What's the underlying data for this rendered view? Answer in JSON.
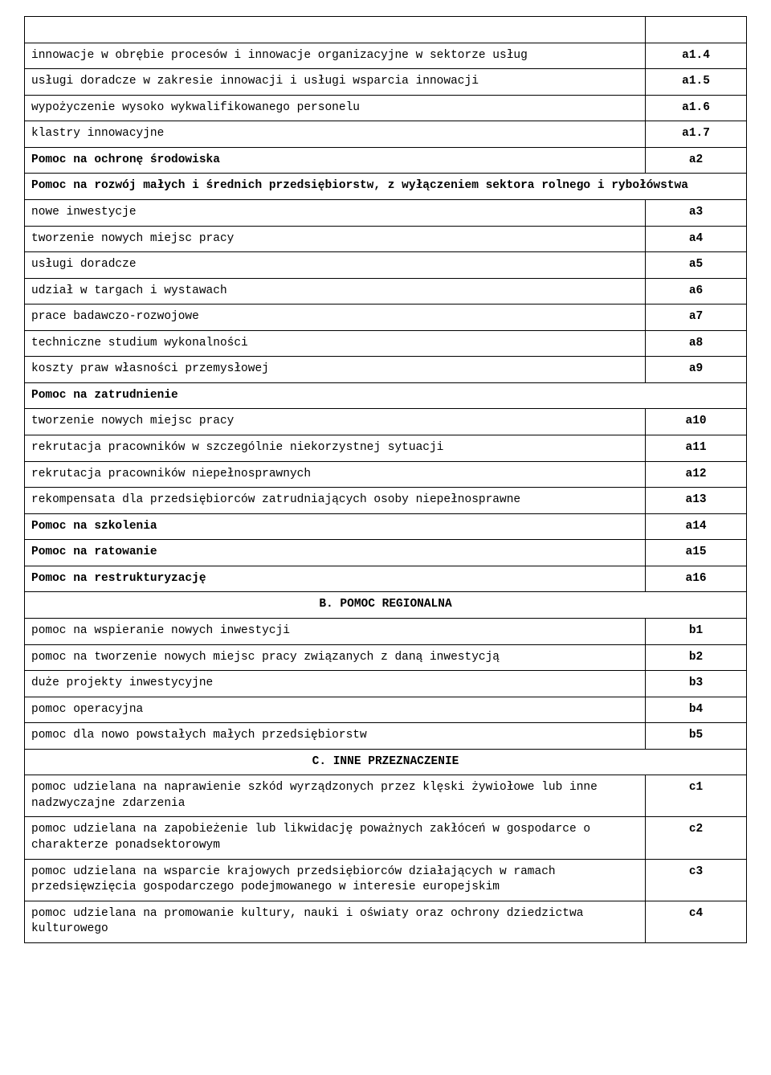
{
  "rows": [
    {
      "type": "empty"
    },
    {
      "type": "item",
      "desc": "innowacje w obrębie procesów i innowacje organizacyjne w sektorze usług",
      "code": "a1.4"
    },
    {
      "type": "item",
      "desc": "usługi doradcze w zakresie innowacji i usługi wsparcia innowacji",
      "code": "a1.5"
    },
    {
      "type": "item",
      "desc": "wypożyczenie wysoko wykwalifikowanego personelu",
      "code": "a1.6"
    },
    {
      "type": "item",
      "desc": "klastry innowacyjne",
      "code": "a1.7"
    },
    {
      "type": "item",
      "desc": "Pomoc na ochronę środowiska",
      "code": "a2",
      "bold": true
    },
    {
      "type": "header",
      "text": "Pomoc na rozwój małych i średnich przedsiębiorstw, z wyłączeniem sektora rolnego i rybołówstwa"
    },
    {
      "type": "item",
      "desc": "nowe inwestycje",
      "code": "a3"
    },
    {
      "type": "item",
      "desc": "tworzenie nowych miejsc pracy",
      "code": "a4"
    },
    {
      "type": "item",
      "desc": "usługi doradcze",
      "code": "a5"
    },
    {
      "type": "item",
      "desc": "udział w targach i wystawach",
      "code": "a6"
    },
    {
      "type": "item",
      "desc": "prace badawczo-rozwojowe",
      "code": "a7"
    },
    {
      "type": "item",
      "desc": "techniczne studium wykonalności",
      "code": "a8"
    },
    {
      "type": "item",
      "desc": "koszty praw własności przemysłowej",
      "code": "a9"
    },
    {
      "type": "header",
      "text": "Pomoc na zatrudnienie"
    },
    {
      "type": "item",
      "desc": "tworzenie nowych miejsc pracy",
      "code": "a10"
    },
    {
      "type": "item",
      "desc": "rekrutacja pracowników w szczególnie niekorzystnej sytuacji",
      "code": "a11"
    },
    {
      "type": "item",
      "desc": "rekrutacja pracowników niepełnosprawnych",
      "code": "a12"
    },
    {
      "type": "item",
      "desc": "rekompensata dla przedsiębiorców zatrudniających osoby niepełnosprawne",
      "code": "a13"
    },
    {
      "type": "item",
      "desc": "Pomoc na szkolenia",
      "code": "a14",
      "bold": true
    },
    {
      "type": "item",
      "desc": "Pomoc na ratowanie",
      "code": "a15",
      "bold": true
    },
    {
      "type": "item",
      "desc": "Pomoc na restrukturyzację",
      "code": "a16",
      "bold": true
    },
    {
      "type": "section",
      "text": "B. POMOC REGIONALNA"
    },
    {
      "type": "item",
      "desc": "pomoc na wspieranie nowych inwestycji",
      "code": "b1"
    },
    {
      "type": "item",
      "desc": "pomoc na tworzenie nowych miejsc pracy związanych z daną inwestycją",
      "code": "b2"
    },
    {
      "type": "item",
      "desc": "duże projekty inwestycyjne",
      "code": "b3"
    },
    {
      "type": "item",
      "desc": "pomoc operacyjna",
      "code": "b4"
    },
    {
      "type": "item",
      "desc": "pomoc dla nowo powstałych małych przedsiębiorstw",
      "code": "b5"
    },
    {
      "type": "section",
      "text": "C. INNE PRZEZNACZENIE"
    },
    {
      "type": "item",
      "desc": "pomoc udzielana na naprawienie szkód wyrządzonych przez klęski żywiołowe lub inne nadzwyczajne zdarzenia",
      "code": "c1"
    },
    {
      "type": "item",
      "desc": "pomoc udzielana na zapobieżenie lub likwidację poważnych zakłóceń w gospodarce o charakterze ponadsektorowym",
      "code": "c2"
    },
    {
      "type": "item",
      "desc": "pomoc udzielana na wsparcie krajowych przedsiębiorców działających w ramach przedsięwzięcia gospodarczego podejmowanego w interesie europejskim",
      "code": "c3"
    },
    {
      "type": "item",
      "desc": "pomoc udzielana na promowanie kultury, nauki i oświaty oraz ochrony dziedzictwa kulturowego",
      "code": "c4"
    }
  ]
}
